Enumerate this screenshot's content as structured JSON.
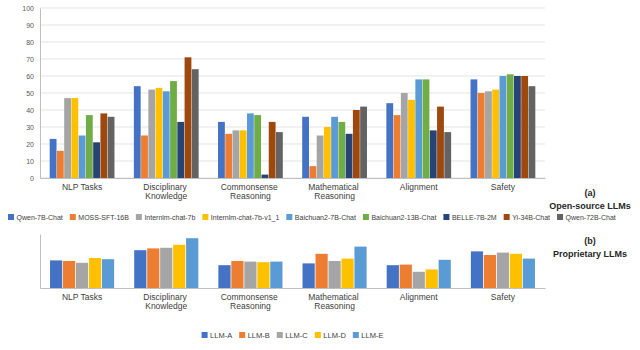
{
  "chart_data": [
    {
      "type": "bar",
      "title": "(a)",
      "subtitle": "Open-source LLMs",
      "categories": [
        "NLP Tasks",
        "Disciplinary Knowledge",
        "Commonsense Reasoning",
        "Mathematical Reasoning",
        "Alignment",
        "Safety"
      ],
      "series": [
        {
          "name": "Qwen-7B-Chat",
          "color": "#4472c4",
          "values": [
            23,
            54,
            33,
            36,
            44,
            58
          ]
        },
        {
          "name": "MOSS-SFT-16B",
          "color": "#ed7d31",
          "values": [
            16,
            25,
            26,
            7,
            37,
            50
          ]
        },
        {
          "name": "Internlm-chat-7b",
          "color": "#a5a5a5",
          "values": [
            47,
            52,
            28,
            25,
            50,
            51
          ]
        },
        {
          "name": "Internlm-chat-7b-v1_1",
          "color": "#ffc000",
          "values": [
            47,
            53,
            28,
            30,
            46,
            52
          ]
        },
        {
          "name": "Baichuan2-7B-Chat",
          "color": "#5b9bd5",
          "values": [
            25,
            51,
            38,
            36,
            58,
            60
          ]
        },
        {
          "name": "Baichuan2-13B-Chat",
          "color": "#70ad47",
          "values": [
            37,
            57,
            37,
            33,
            58,
            61
          ]
        },
        {
          "name": "BELLE-7B-2M",
          "color": "#264478",
          "values": [
            21,
            33,
            2,
            26,
            28,
            60
          ]
        },
        {
          "name": "Yi-34B-Chat",
          "color": "#9e480e",
          "values": [
            38,
            71,
            33,
            40,
            42,
            60
          ]
        },
        {
          "name": "Qwen-72B-Chat",
          "color": "#636363",
          "values": [
            36,
            64,
            27,
            42,
            27,
            54
          ]
        }
      ],
      "ylim": [
        0,
        100
      ],
      "yticks": [
        0,
        10,
        20,
        30,
        40,
        50,
        60,
        70,
        80,
        90,
        100
      ],
      "grid": true,
      "legend": "bottom"
    },
    {
      "type": "bar",
      "title": "(b)",
      "subtitle": "Proprietary LLMs",
      "categories": [
        "NLP Tasks",
        "Disciplinary Knowledge",
        "Commonsense Reasoning",
        "Mathematical Reasoning",
        "Alignment",
        "Safety"
      ],
      "series": [
        {
          "name": "LLM-A",
          "color": "#4472c4",
          "values": [
            46,
            63,
            38,
            41,
            38,
            61
          ]
        },
        {
          "name": "LLM-B",
          "color": "#ed7d31",
          "values": [
            45,
            66,
            45,
            57,
            39,
            55
          ]
        },
        {
          "name": "LLM-C",
          "color": "#a5a5a5",
          "values": [
            42,
            67,
            44,
            45,
            27,
            59
          ]
        },
        {
          "name": "LLM-D",
          "color": "#ffc000",
          "values": [
            50,
            72,
            43,
            49,
            31,
            57
          ]
        },
        {
          "name": "LLM-E",
          "color": "#5b9bd5",
          "values": [
            48,
            83,
            44,
            69,
            47,
            49
          ]
        }
      ],
      "ylim": [
        0,
        90
      ],
      "grid": false,
      "legend": "bottom",
      "tick_labels": "x"
    }
  ]
}
